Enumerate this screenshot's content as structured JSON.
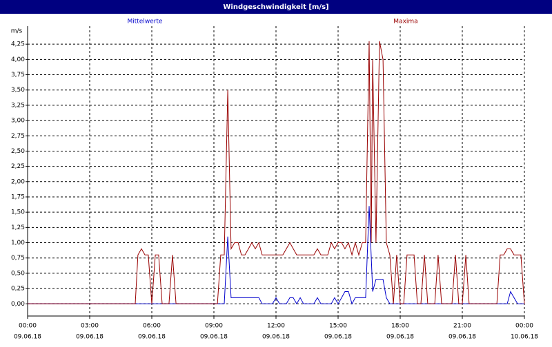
{
  "chart_data": {
    "type": "line",
    "title": "Windgeschwindigkeit [m/s]",
    "y_label": "m/s",
    "xlim": [
      0,
      24
    ],
    "ylim": [
      -0.2,
      4.5
    ],
    "grid": true,
    "xticks": [
      {
        "value": 0,
        "label": "00:00",
        "date": "09.06.18"
      },
      {
        "value": 3,
        "label": "03:00",
        "date": "09.06.18"
      },
      {
        "value": 6,
        "label": "06:00",
        "date": "09.06.18"
      },
      {
        "value": 9,
        "label": "09:00",
        "date": "09.06.18"
      },
      {
        "value": 12,
        "label": "12:00",
        "date": "09.06.18"
      },
      {
        "value": 15,
        "label": "15:00",
        "date": "09.06.18"
      },
      {
        "value": 18,
        "label": "18:00",
        "date": "09.06.18"
      },
      {
        "value": 21,
        "label": "21:00",
        "date": "09.06.18"
      },
      {
        "value": 24,
        "label": "00:00",
        "date": "10.06.18"
      }
    ],
    "yticks": [
      {
        "value": 0,
        "label": "0,00"
      },
      {
        "value": 0.25,
        "label": "0,25"
      },
      {
        "value": 0.5,
        "label": "0,50"
      },
      {
        "value": 0.75,
        "label": "0,75"
      },
      {
        "value": 1,
        "label": "1,00"
      },
      {
        "value": 1.25,
        "label": "1,25"
      },
      {
        "value": 1.5,
        "label": "1,50"
      },
      {
        "value": 1.75,
        "label": "1,75"
      },
      {
        "value": 2,
        "label": "2,00"
      },
      {
        "value": 2.25,
        "label": "2,25"
      },
      {
        "value": 2.5,
        "label": "2,50"
      },
      {
        "value": 2.75,
        "label": "2,75"
      },
      {
        "value": 3,
        "label": "3,00"
      },
      {
        "value": 3.25,
        "label": "3,25"
      },
      {
        "value": 3.5,
        "label": "3,50"
      },
      {
        "value": 3.75,
        "label": "3,75"
      },
      {
        "value": 4,
        "label": "4,00"
      },
      {
        "value": 4.25,
        "label": "4,25"
      }
    ],
    "series": [
      {
        "name": "Mittelwerte",
        "color": "#0000cc",
        "x": [
          0,
          9.5,
          9.67,
          9.83,
          10.0,
          11.17,
          11.33,
          11.83,
          12.0,
          12.17,
          12.5,
          12.67,
          12.83,
          13.0,
          13.17,
          13.33,
          13.83,
          14.0,
          14.17,
          14.67,
          14.83,
          15.0,
          15.17,
          15.33,
          15.5,
          15.67,
          15.83,
          16.33,
          16.5,
          16.67,
          16.83,
          17.17,
          17.33,
          17.5,
          23.17,
          23.33,
          23.5,
          23.67,
          24.0
        ],
        "values": [
          0,
          0,
          1.1,
          0.1,
          0.1,
          0.1,
          0,
          0,
          0.1,
          0,
          0,
          0.1,
          0.1,
          0,
          0.1,
          0,
          0,
          0.1,
          0,
          0,
          0.1,
          0,
          0.1,
          0.2,
          0.2,
          0,
          0.1,
          0.1,
          1.6,
          0.2,
          0.4,
          0.4,
          0.1,
          0,
          0,
          0.2,
          0.1,
          0,
          0
        ]
      },
      {
        "name": "Maxima",
        "color": "#990000",
        "x": [
          0,
          5.2,
          5.33,
          5.5,
          5.67,
          5.83,
          6.0,
          6.17,
          6.33,
          6.5,
          6.83,
          7.0,
          7.17,
          9.17,
          9.33,
          9.5,
          9.67,
          9.83,
          10.0,
          10.17,
          10.33,
          10.5,
          10.67,
          10.83,
          11.0,
          11.17,
          11.33,
          12.33,
          12.5,
          12.67,
          13.0,
          13.83,
          14.0,
          14.17,
          14.5,
          14.67,
          14.83,
          15.0,
          15.17,
          15.33,
          15.5,
          15.67,
          15.83,
          16.0,
          16.17,
          16.33,
          16.5,
          16.6,
          16.67,
          16.83,
          17.0,
          17.17,
          17.33,
          17.5,
          17.67,
          17.83,
          18.0,
          18.17,
          18.33,
          18.67,
          18.83,
          19.0,
          19.17,
          19.33,
          19.67,
          19.83,
          20.0,
          20.5,
          20.67,
          20.83,
          21.0,
          21.17,
          21.33,
          22.67,
          22.83,
          23.0,
          23.17,
          23.33,
          23.5,
          23.83,
          24.0
        ],
        "values": [
          0,
          0,
          0.8,
          0.9,
          0.8,
          0.8,
          0,
          0.8,
          0.8,
          0,
          0,
          0.8,
          0,
          0,
          0.8,
          0.8,
          3.5,
          0.9,
          1.0,
          1.0,
          0.8,
          0.8,
          0.9,
          1.0,
          0.9,
          1.0,
          0.8,
          0.8,
          0.9,
          1.0,
          0.8,
          0.8,
          0.9,
          0.8,
          0.8,
          1.0,
          0.9,
          1.0,
          1.0,
          0.9,
          1.0,
          0.8,
          1.0,
          0.8,
          1.0,
          1.0,
          4.3,
          1.0,
          4.0,
          1.0,
          4.3,
          4.0,
          1.0,
          0.8,
          0,
          0.8,
          0,
          0,
          0.8,
          0.8,
          0,
          0,
          0.8,
          0,
          0,
          0.8,
          0,
          0,
          0.8,
          0,
          0,
          0.8,
          0,
          0,
          0.8,
          0.8,
          0.9,
          0.9,
          0.8,
          0.8,
          0
        ]
      }
    ]
  }
}
